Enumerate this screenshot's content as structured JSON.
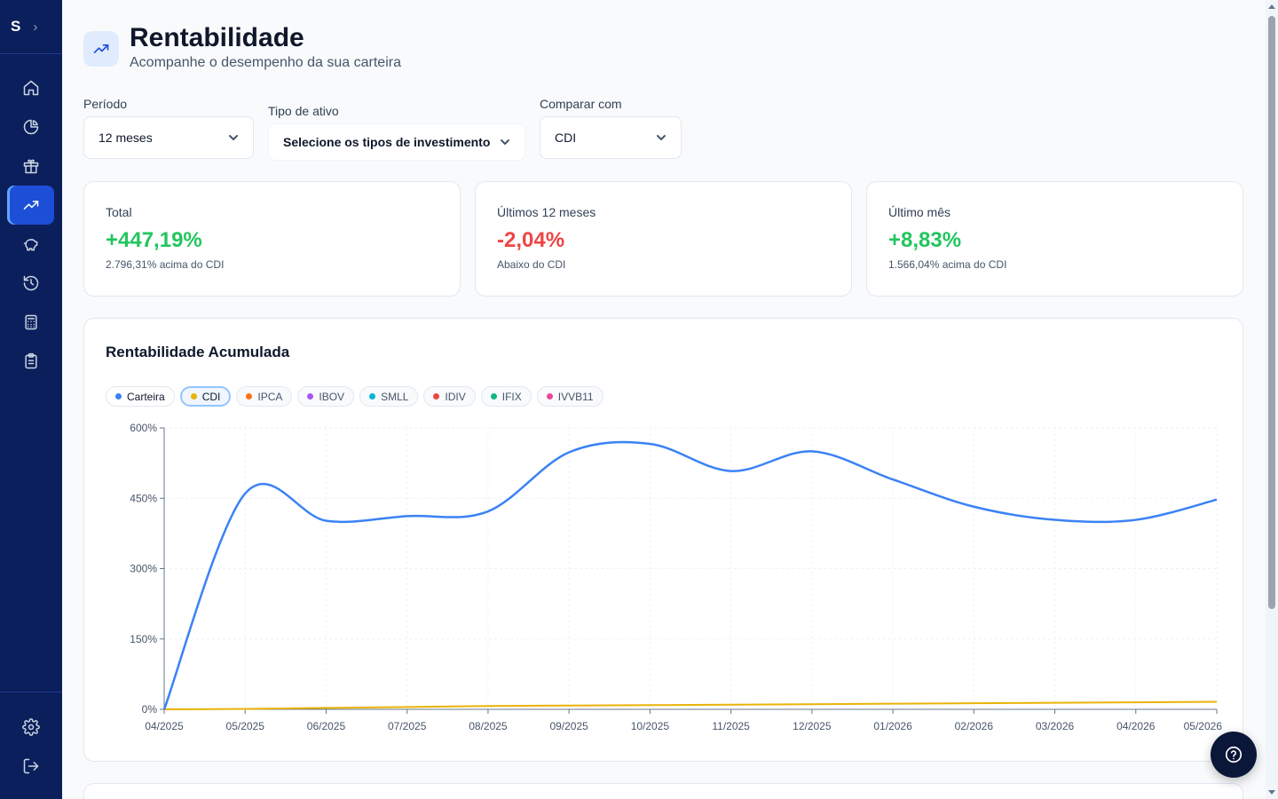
{
  "sidebar": {
    "logo": "S",
    "expand_icon": "chevron-right-icon",
    "items": [
      {
        "name": "home",
        "icon": "home-icon",
        "active": false
      },
      {
        "name": "portfolio",
        "icon": "pie-chart-icon",
        "active": false
      },
      {
        "name": "dividends",
        "icon": "gift-icon",
        "active": false
      },
      {
        "name": "rentabilidade",
        "icon": "trending-up-icon",
        "active": true
      },
      {
        "name": "savings",
        "icon": "piggy-bank-icon",
        "active": false
      },
      {
        "name": "history",
        "icon": "history-icon",
        "active": false
      },
      {
        "name": "calculator",
        "icon": "calculator-icon",
        "active": false
      },
      {
        "name": "reports",
        "icon": "clipboard-icon",
        "active": false
      }
    ],
    "bottom_items": [
      {
        "name": "settings",
        "icon": "gear-icon"
      },
      {
        "name": "logout",
        "icon": "logout-icon"
      }
    ]
  },
  "header": {
    "title": "Rentabilidade",
    "subtitle": "Acompanhe o desempenho da sua carteira",
    "icon": "trending-up-icon"
  },
  "filters": {
    "periodo": {
      "label": "Período",
      "value": "12 meses"
    },
    "tipo": {
      "label": "Tipo de ativo",
      "value": "Selecione os tipos de investimento"
    },
    "comparar": {
      "label": "Comparar com",
      "value": "CDI"
    }
  },
  "cards": [
    {
      "title": "Total",
      "value": "+447,19%",
      "note": "2.796,31% acima do CDI",
      "tone": "pos"
    },
    {
      "title": "Últimos 12 meses",
      "value": "-2,04%",
      "note": "Abaixo do CDI",
      "tone": "neg"
    },
    {
      "title": "Último mês",
      "value": "+8,83%",
      "note": "1.566,04% acima do CDI",
      "tone": "pos"
    }
  ],
  "chart_section": {
    "title": "Rentabilidade Acumulada",
    "legend": [
      {
        "label": "Carteira",
        "color": "#3b82f6",
        "state": "on"
      },
      {
        "label": "CDI",
        "color": "#eab308",
        "state": "selected"
      },
      {
        "label": "IPCA",
        "color": "#f97316",
        "state": "off"
      },
      {
        "label": "IBOV",
        "color": "#a855f7",
        "state": "off"
      },
      {
        "label": "SMLL",
        "color": "#06b6d4",
        "state": "off"
      },
      {
        "label": "IDIV",
        "color": "#ef4444",
        "state": "off"
      },
      {
        "label": "IFIX",
        "color": "#10b981",
        "state": "off"
      },
      {
        "label": "IVVB11",
        "color": "#ec4899",
        "state": "off"
      }
    ]
  },
  "chart_data": {
    "type": "line",
    "title": "Rentabilidade Acumulada",
    "x": [
      "04/2025",
      "05/2025",
      "06/2025",
      "07/2025",
      "08/2025",
      "09/2025",
      "10/2025",
      "11/2025",
      "12/2025",
      "01/2026",
      "02/2026",
      "03/2026",
      "04/2026",
      "05/2026"
    ],
    "y_ticks": [
      "0%",
      "150%",
      "300%",
      "450%",
      "600%"
    ],
    "ylim": [
      0,
      600
    ],
    "grid": true,
    "series": [
      {
        "name": "Carteira",
        "color": "#3b82f6",
        "values": [
          0,
          460,
          402,
          412,
          422,
          548,
          566,
          508,
          550,
          490,
          432,
          404,
          404,
          447
        ]
      },
      {
        "name": "CDI",
        "color": "#eab308",
        "values": [
          0,
          1,
          3,
          5,
          7,
          8,
          9,
          10,
          11,
          12,
          13,
          14,
          15,
          16
        ]
      }
    ]
  },
  "help": {
    "icon": "help-circle-icon"
  }
}
